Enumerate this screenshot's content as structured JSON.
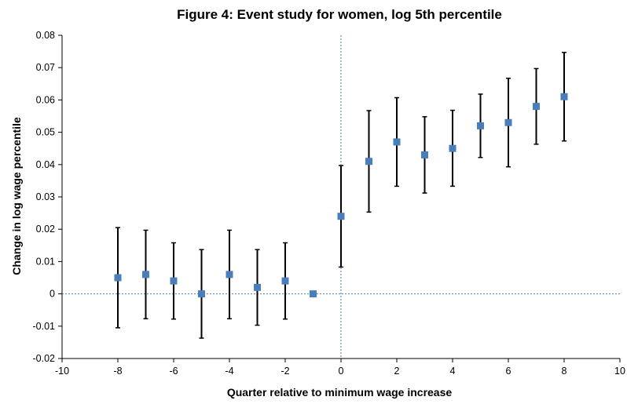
{
  "chart_data": {
    "type": "scatter",
    "title": "Figure 4: Event study for women, log 5th percentile",
    "xlabel": "Quarter relative to minimum wage increase",
    "ylabel": "Change in log wage percentile",
    "xlim": [
      -10,
      10
    ],
    "ylim": [
      -0.02,
      0.08
    ],
    "xticks": [
      -10,
      -8,
      -6,
      -4,
      -2,
      0,
      2,
      4,
      6,
      8,
      10
    ],
    "yticks": [
      -0.02,
      -0.01,
      0,
      0.01,
      0.02,
      0.03,
      0.04,
      0.05,
      0.06,
      0.07,
      0.08
    ],
    "xtick_labels": [
      "-10",
      "-8",
      "-6",
      "-4",
      "-2",
      "0",
      "2",
      "4",
      "6",
      "8",
      "10"
    ],
    "ytick_labels": [
      "-0.02",
      "-0.01",
      "0",
      "0.01",
      "0.02",
      "0.03",
      "0.04",
      "0.05",
      "0.06",
      "0.07",
      "0.08"
    ],
    "grid": false,
    "reference_lines": {
      "x": 0,
      "y": 0,
      "style": "dotted"
    },
    "marker_color": "#4a7ebb",
    "reference_line_color": "#4a7ebb",
    "errorbar_color": "#000000",
    "points": [
      {
        "x": -8,
        "y": 0.005,
        "lower": -0.0105,
        "upper": 0.0205
      },
      {
        "x": -7,
        "y": 0.006,
        "lower": -0.0077,
        "upper": 0.0197
      },
      {
        "x": -6,
        "y": 0.004,
        "lower": -0.0078,
        "upper": 0.0158
      },
      {
        "x": -5,
        "y": 0.0,
        "lower": -0.0137,
        "upper": 0.0137
      },
      {
        "x": -4,
        "y": 0.006,
        "lower": -0.0077,
        "upper": 0.0197
      },
      {
        "x": -3,
        "y": 0.002,
        "lower": -0.0097,
        "upper": 0.0137
      },
      {
        "x": -2,
        "y": 0.004,
        "lower": -0.0078,
        "upper": 0.0158
      },
      {
        "x": -1,
        "y": 0.0
      },
      {
        "x": 0,
        "y": 0.024,
        "lower": 0.0083,
        "upper": 0.0397
      },
      {
        "x": 1,
        "y": 0.041,
        "lower": 0.0253,
        "upper": 0.0567
      },
      {
        "x": 2,
        "y": 0.047,
        "lower": 0.0333,
        "upper": 0.0607
      },
      {
        "x": 3,
        "y": 0.043,
        "lower": 0.0312,
        "upper": 0.0548
      },
      {
        "x": 4,
        "y": 0.045,
        "lower": 0.0333,
        "upper": 0.0568
      },
      {
        "x": 5,
        "y": 0.052,
        "lower": 0.0422,
        "upper": 0.0618
      },
      {
        "x": 6,
        "y": 0.053,
        "lower": 0.0393,
        "upper": 0.0667
      },
      {
        "x": 7,
        "y": 0.058,
        "lower": 0.0463,
        "upper": 0.0697
      },
      {
        "x": 8,
        "y": 0.061,
        "lower": 0.0473,
        "upper": 0.0747
      }
    ]
  }
}
